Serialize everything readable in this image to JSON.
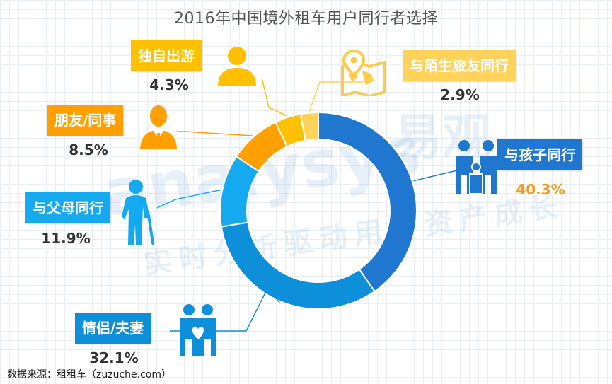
{
  "title": "2016年中国境外租车用户同行者选择",
  "source": "数据来源：租租车（zuzuche.com）",
  "watermark": {
    "brand_en": "analysys",
    "brand_cn": "易观",
    "slogan": "实时分析驱动用户资产成长"
  },
  "colors": {
    "with_children": "#1f77d0",
    "couple": "#0e8fd9",
    "with_parents": "#15aaf0",
    "friends_colleagues": "#ff9f00",
    "solo": "#ffc000",
    "stranger": "#ffd35a",
    "pct_highlight": "#f79a1e"
  },
  "chart_data": {
    "type": "pie",
    "style": "donut",
    "title": "2016年中国境外租车用户同行者选择",
    "unit": "%",
    "categories": [
      "与孩子同行",
      "情侣/夫妻",
      "与父母同行",
      "朋友/同事",
      "独自出游",
      "与陌生旅友同行"
    ],
    "values": [
      40.3,
      32.1,
      11.9,
      8.5,
      4.3,
      2.9
    ],
    "value_labels": [
      "40.3%",
      "32.1%",
      "11.9%",
      "8.5%",
      "4.3%",
      "2.9%"
    ],
    "legend": "none"
  }
}
